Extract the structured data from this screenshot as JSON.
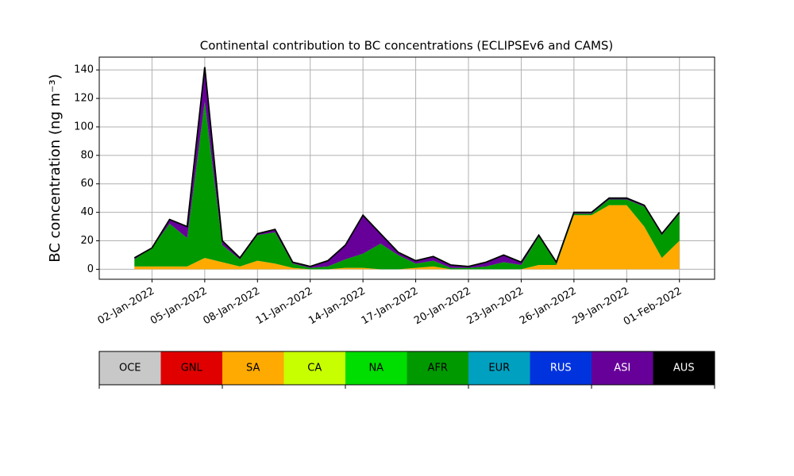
{
  "chart_data": {
    "type": "stacked_area",
    "title": "Continental contribution to BC concentrations (ECLIPSEv6 and CAMS)",
    "y_label": "BC concentration (ng m⁻³)",
    "x": [
      "2022-01-01",
      "2022-01-02",
      "2022-01-03",
      "2022-01-04",
      "2022-01-05",
      "2022-01-06",
      "2022-01-07",
      "2022-01-08",
      "2022-01-09",
      "2022-01-10",
      "2022-01-11",
      "2022-01-12",
      "2022-01-13",
      "2022-01-14",
      "2022-01-15",
      "2022-01-16",
      "2022-01-17",
      "2022-01-18",
      "2022-01-19",
      "2022-01-20",
      "2022-01-21",
      "2022-01-22",
      "2022-01-23",
      "2022-01-24",
      "2022-01-25",
      "2022-01-26",
      "2022-01-27",
      "2022-01-28",
      "2022-01-29",
      "2022-01-30",
      "2022-01-31",
      "2022-02-01"
    ],
    "series": [
      {
        "name": "OCE",
        "color": "#c8c8c8",
        "values": [
          0,
          0,
          0,
          0,
          0,
          0,
          0,
          0,
          0,
          0,
          0,
          0,
          0,
          0,
          0,
          0,
          0,
          0,
          0,
          0,
          0,
          0,
          0,
          0,
          0,
          0,
          0,
          0,
          0,
          0,
          0,
          0
        ]
      },
      {
        "name": "GNL",
        "color": "#e00000",
        "values": [
          0,
          0,
          0,
          0,
          0,
          0,
          0,
          0,
          0,
          0,
          0,
          0,
          0,
          0,
          0,
          0,
          0,
          0,
          0,
          0,
          0,
          0,
          0,
          0,
          0,
          0,
          0,
          0,
          0,
          0,
          0,
          0
        ]
      },
      {
        "name": "SA",
        "color": "#ffaa00",
        "values": [
          2,
          2,
          2,
          2,
          8,
          5,
          2,
          6,
          4,
          1,
          0,
          0,
          1,
          1,
          0,
          0,
          1,
          2,
          0,
          0,
          0,
          0,
          0,
          3,
          3,
          38,
          38,
          45,
          45,
          30,
          8,
          20
        ]
      },
      {
        "name": "CA",
        "color": "#c8ff00",
        "values": [
          0,
          0,
          0,
          0,
          0,
          0,
          0,
          0,
          0,
          0,
          0,
          0,
          0,
          0,
          0,
          0,
          0,
          0,
          0,
          0,
          0,
          0,
          0,
          0,
          0,
          0,
          0,
          0,
          0,
          0,
          0,
          0
        ]
      },
      {
        "name": "NA",
        "color": "#00dd00",
        "values": [
          0,
          0,
          0,
          0,
          0,
          0,
          0,
          0,
          0,
          0,
          0,
          0,
          0,
          0,
          0,
          0,
          0,
          0,
          0,
          0,
          0,
          0,
          0,
          0,
          0,
          0,
          0,
          0,
          0,
          0,
          0,
          0
        ]
      },
      {
        "name": "AFR",
        "color": "#009900",
        "values": [
          5,
          13,
          30,
          20,
          110,
          12,
          5,
          18,
          22,
          3,
          1,
          2,
          6,
          10,
          18,
          10,
          3,
          4,
          1,
          1,
          2,
          5,
          3,
          20,
          1,
          1,
          1,
          4,
          4,
          14,
          16,
          19
        ]
      },
      {
        "name": "EUR",
        "color": "#00a0c0",
        "values": [
          0,
          0,
          0,
          0,
          0,
          0,
          0,
          0,
          0,
          0,
          0,
          0,
          0,
          0,
          0,
          0,
          0,
          0,
          0,
          0,
          0,
          0,
          0,
          0,
          0,
          0,
          0,
          0,
          0,
          0,
          0,
          0
        ]
      },
      {
        "name": "RUS",
        "color": "#0033dd",
        "values": [
          0,
          0,
          0,
          0,
          0,
          0,
          0,
          0,
          0,
          0,
          0,
          0,
          0,
          0,
          0,
          0,
          0,
          0,
          0,
          0,
          0,
          0,
          0,
          0,
          0,
          0,
          0,
          0,
          0,
          0,
          0,
          0
        ]
      },
      {
        "name": "ASI",
        "color": "#660099",
        "values": [
          1,
          0,
          3,
          8,
          24,
          3,
          1,
          1,
          2,
          1,
          1,
          4,
          10,
          27,
          7,
          2,
          2,
          3,
          2,
          1,
          3,
          5,
          2,
          1,
          1,
          1,
          1,
          1,
          1,
          1,
          1,
          1
        ]
      },
      {
        "name": "AUS",
        "color": "#000000",
        "values": [
          0,
          0,
          0,
          0,
          0,
          0,
          0,
          0,
          0,
          0,
          0,
          0,
          0,
          0,
          0,
          0,
          0,
          0,
          0,
          0,
          0,
          0,
          0,
          0,
          0,
          0,
          0,
          0,
          0,
          0,
          0,
          0
        ]
      }
    ],
    "xlim": [
      "2021-12-30",
      "2022-02-03"
    ],
    "xticks": [
      {
        "value": "2022-01-02",
        "label": "02-Jan-2022"
      },
      {
        "value": "2022-01-05",
        "label": "05-Jan-2022"
      },
      {
        "value": "2022-01-08",
        "label": "08-Jan-2022"
      },
      {
        "value": "2022-01-11",
        "label": "11-Jan-2022"
      },
      {
        "value": "2022-01-14",
        "label": "14-Jan-2022"
      },
      {
        "value": "2022-01-17",
        "label": "17-Jan-2022"
      },
      {
        "value": "2022-01-20",
        "label": "20-Jan-2022"
      },
      {
        "value": "2022-01-23",
        "label": "23-Jan-2022"
      },
      {
        "value": "2022-01-26",
        "label": "26-Jan-2022"
      },
      {
        "value": "2022-01-29",
        "label": "29-Jan-2022"
      },
      {
        "value": "2022-02-01",
        "label": "01-Feb-2022"
      }
    ],
    "ylim": [
      -7,
      149
    ],
    "yticks": [
      0,
      20,
      40,
      60,
      80,
      100,
      120,
      140
    ],
    "grid": true
  }
}
